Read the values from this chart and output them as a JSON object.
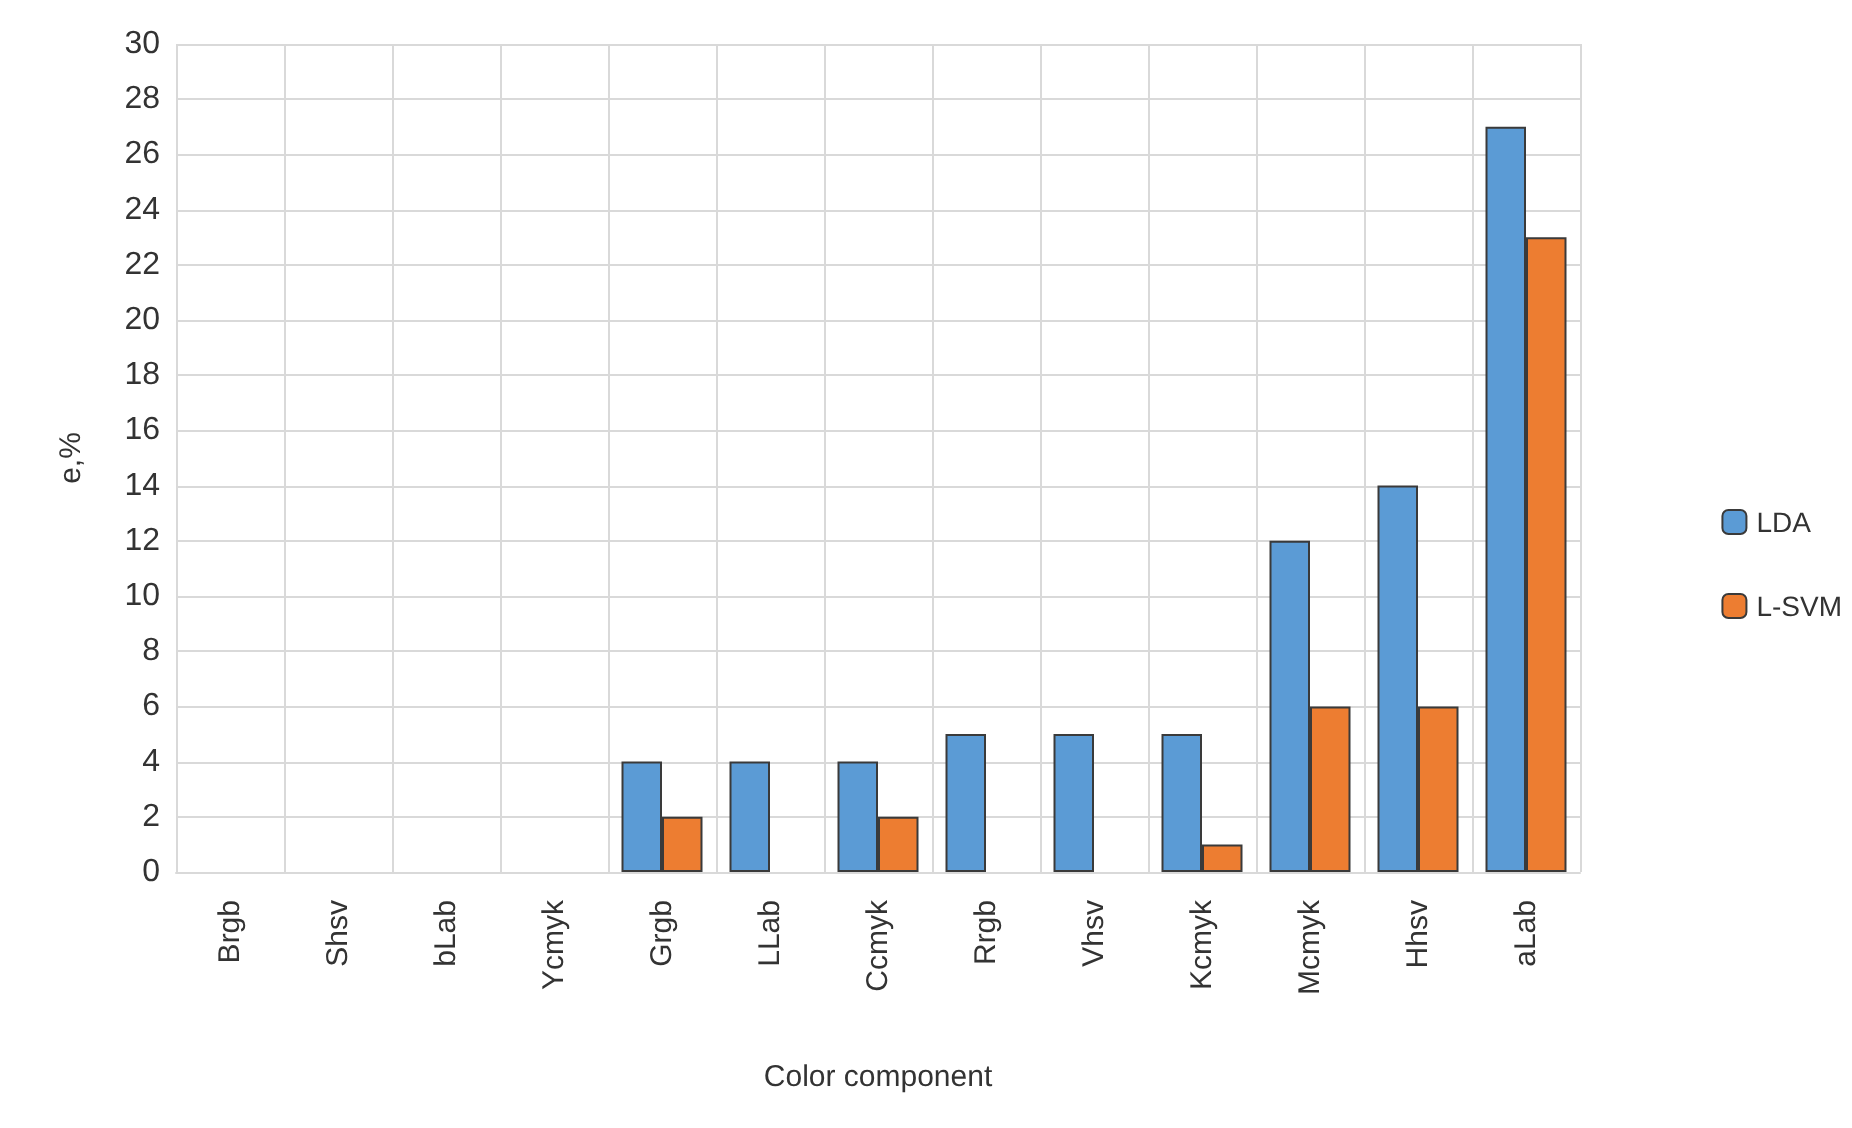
{
  "chart_data": {
    "type": "bar",
    "xlabel": "Color component",
    "ylabel": "e,%",
    "categories": [
      "Brgb",
      "Shsv",
      "bLab",
      "Ycmyk",
      "Grgb",
      "LLab",
      "Ccmyk",
      "Rrgb",
      "Vhsv",
      "Kcmyk",
      "Mcmyk",
      "Hhsv",
      "aLab"
    ],
    "series": [
      {
        "name": "LDA",
        "color": "#5b9bd5",
        "values": [
          0,
          0,
          0,
          0,
          4,
          4,
          4,
          5,
          5,
          5,
          12,
          14,
          27
        ]
      },
      {
        "name": "L-SVM",
        "color": "#ed7d31",
        "values": [
          0,
          0,
          0,
          0,
          2,
          0,
          2,
          0,
          0,
          1,
          6,
          6,
          23
        ]
      }
    ],
    "ylim": [
      0,
      30
    ],
    "yticks": [
      0,
      2,
      4,
      6,
      8,
      10,
      12,
      14,
      16,
      18,
      20,
      22,
      24,
      26,
      28,
      30
    ],
    "grid": true,
    "legend": "right"
  }
}
